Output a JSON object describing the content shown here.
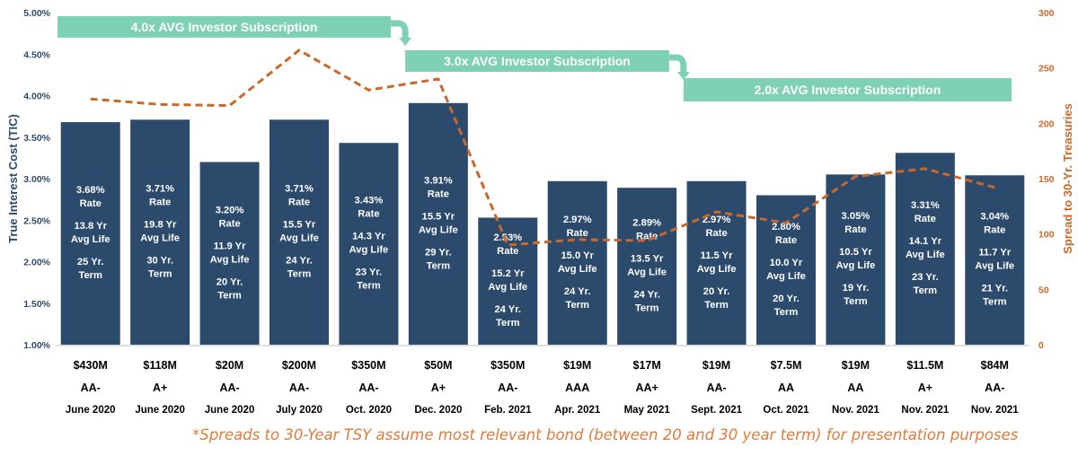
{
  "chart_data": {
    "type": "bar",
    "y_left_label": "True Interest Cost (TIC)",
    "y_right_label": "Spread to 30-Yr. Treasuries",
    "y_left_ticks": [
      "1.00%",
      "1.50%",
      "2.00%",
      "2.50%",
      "3.00%",
      "3.50%",
      "4.00%",
      "4.50%",
      "5.00%"
    ],
    "y_right_ticks": [
      "0",
      "50",
      "100",
      "150",
      "200",
      "250",
      "300"
    ],
    "y_left_range": [
      1.0,
      5.0
    ],
    "y_right_range": [
      0,
      300
    ],
    "categories": [
      "June 2020",
      "June 2020",
      "June 2020",
      "July 2020",
      "Oct. 2020",
      "Dec. 2020",
      "Feb. 2021",
      "Apr. 2021",
      "May 2021",
      "Sept. 2021",
      "Oct. 2021",
      "Nov. 2021",
      "Nov. 2021",
      "Nov. 2021"
    ],
    "bars": [
      {
        "value": 3.68,
        "rate": "3.68%",
        "rate_word": "Rate",
        "avg_life": "13.8 Yr",
        "avg_life_word": "Avg Life",
        "term": "25 Yr.",
        "term_word": "Term",
        "amount": "$430M",
        "rating": "AA-",
        "date": "June 2020"
      },
      {
        "value": 3.71,
        "rate": "3.71%",
        "rate_word": "Rate",
        "avg_life": "19.8 Yr",
        "avg_life_word": "Avg Life",
        "term": "30 Yr.",
        "term_word": "Term",
        "amount": "$118M",
        "rating": "A+",
        "date": "June 2020"
      },
      {
        "value": 3.2,
        "rate": "3.20%",
        "rate_word": "Rate",
        "avg_life": "11.9 Yr",
        "avg_life_word": "Avg Life",
        "term": "20 Yr.",
        "term_word": "Term",
        "amount": "$20M",
        "rating": "AA-",
        "date": "June 2020"
      },
      {
        "value": 3.71,
        "rate": "3.71%",
        "rate_word": "Rate",
        "avg_life": "15.5 Yr",
        "avg_life_word": "Avg Life",
        "term": "24 Yr.",
        "term_word": "Term",
        "amount": "$200M",
        "rating": "AA-",
        "date": "July 2020"
      },
      {
        "value": 3.43,
        "rate": "3.43%",
        "rate_word": "Rate",
        "avg_life": "14.3 Yr",
        "avg_life_word": "Avg Life",
        "term": "23 Yr.",
        "term_word": "Term",
        "amount": "$350M",
        "rating": "AA-",
        "date": "Oct. 2020"
      },
      {
        "value": 3.91,
        "rate": "3.91%",
        "rate_word": "Rate",
        "avg_life": "15.5 Yr",
        "avg_life_word": "Avg Life",
        "term": "29 Yr.",
        "term_word": "Term",
        "amount": "$50M",
        "rating": "A+",
        "date": "Dec. 2020"
      },
      {
        "value": 2.53,
        "rate": "2.53%",
        "rate_word": "Rate",
        "avg_life": "15.2 Yr",
        "avg_life_word": "Avg Life",
        "term": "24 Yr.",
        "term_word": "Term",
        "amount": "$350M",
        "rating": "AA-",
        "date": "Feb. 2021"
      },
      {
        "value": 2.97,
        "rate": "2.97%",
        "rate_word": "Rate",
        "avg_life": "15.0 Yr",
        "avg_life_word": "Avg Life",
        "term": "24 Yr.",
        "term_word": "Term",
        "amount": "$19M",
        "rating": "AAA",
        "date": "Apr. 2021"
      },
      {
        "value": 2.89,
        "rate": "2.89%",
        "rate_word": "Rate",
        "avg_life": "13.5 Yr",
        "avg_life_word": "Avg Life",
        "term": "24 Yr.",
        "term_word": "Term",
        "amount": "$17M",
        "rating": "AA+",
        "date": "May 2021"
      },
      {
        "value": 2.97,
        "rate": "2.97%",
        "rate_word": "Rate",
        "avg_life": "11.5 Yr",
        "avg_life_word": "Avg Life",
        "term": "20 Yr.",
        "term_word": "Term",
        "amount": "$19M",
        "rating": "AA-",
        "date": "Sept. 2021"
      },
      {
        "value": 2.8,
        "rate": "2.80%",
        "rate_word": "Rate",
        "avg_life": "10.0 Yr",
        "avg_life_word": "Avg Life",
        "term": "20 Yr.",
        "term_word": "Term",
        "amount": "$7.5M",
        "rating": "AA",
        "date": "Oct. 2021"
      },
      {
        "value": 3.05,
        "rate": "3.05%",
        "rate_word": "Rate",
        "avg_life": "10.5 Yr",
        "avg_life_word": "Avg Life",
        "term": "19 Yr.",
        "term_word": "Term",
        "amount": "$19M",
        "rating": "AA",
        "date": "Nov. 2021"
      },
      {
        "value": 3.31,
        "rate": "3.31%",
        "rate_word": "Rate",
        "avg_life": "14.1 Yr",
        "avg_life_word": "Avg Life",
        "term": "23 Yr.",
        "term_word": "Term",
        "amount": "$11.5M",
        "rating": "A+",
        "date": "Nov. 2021"
      },
      {
        "value": 3.04,
        "rate": "3.04%",
        "rate_word": "Rate",
        "avg_life": "11.7 Yr",
        "avg_life_word": "Avg Life",
        "term": "21 Yr.",
        "term_word": "Term",
        "amount": "$84M",
        "rating": "AA-",
        "date": "Nov. 2021"
      }
    ],
    "spread_line": {
      "axis": "right",
      "style": "dashed",
      "values": [
        222,
        217,
        216,
        266,
        230,
        240,
        90,
        95,
        94,
        120,
        110,
        152,
        159,
        142
      ]
    },
    "subscription_banners": [
      {
        "label": "4.0x AVG Investor Subscription",
        "from_bar": 0,
        "to_bar": 4
      },
      {
        "label": "3.0x AVG Investor Subscription",
        "from_bar": 5,
        "to_bar": 8
      },
      {
        "label": "2.0x AVG Investor Subscription",
        "from_bar": 9,
        "to_bar": 13
      }
    ],
    "grid": false
  },
  "colors": {
    "bar": "#2b4a6c",
    "bar_text": "#ffffff",
    "left_axis": "#2b4a6c",
    "right_axis": "#c8692c",
    "spread_line": "#c8692c",
    "banner": "#7fd1b6",
    "banner_text": "#ffffff",
    "category_text": "#000000",
    "footnote": "#e07b39"
  },
  "footnote": "*Spreads to 30-Year TSY assume most relevant bond (between 20 and 30 year term) for presentation purposes"
}
